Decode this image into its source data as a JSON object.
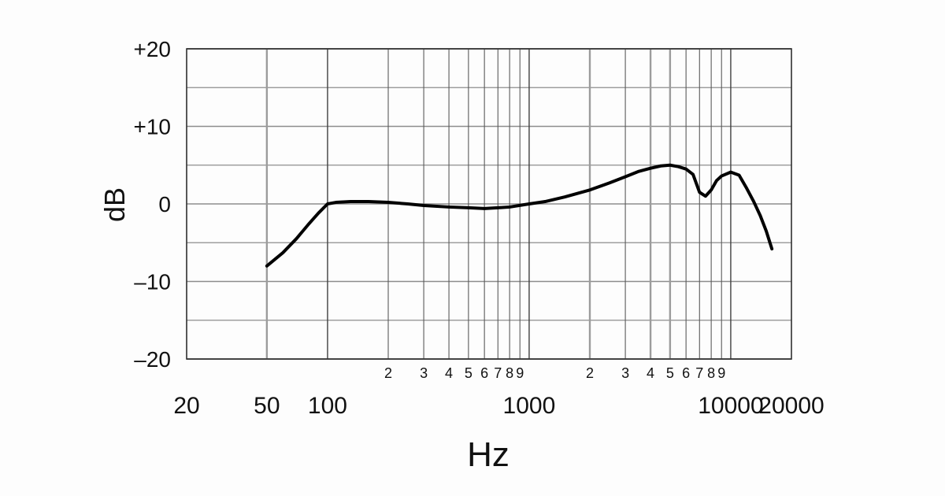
{
  "chart_data": {
    "type": "line",
    "title": "",
    "xlabel": "Hz",
    "ylabel": "dB",
    "x_scale": "log",
    "xlim": [
      20,
      20000
    ],
    "ylim": [
      -20,
      20
    ],
    "grid": true,
    "x_major_ticks": [
      {
        "value": 20,
        "label": "20"
      },
      {
        "value": 50,
        "label": "50"
      },
      {
        "value": 100,
        "label": "100"
      },
      {
        "value": 1000,
        "label": "1000"
      },
      {
        "value": 10000,
        "label": "10000"
      },
      {
        "value": 20000,
        "label": "20000"
      }
    ],
    "x_minor_ticks": [
      {
        "value": 200,
        "label": "2"
      },
      {
        "value": 300,
        "label": "3"
      },
      {
        "value": 400,
        "label": "4"
      },
      {
        "value": 500,
        "label": "5"
      },
      {
        "value": 600,
        "label": "6"
      },
      {
        "value": 700,
        "label": "7"
      },
      {
        "value": 800,
        "label": "8"
      },
      {
        "value": 900,
        "label": "9"
      },
      {
        "value": 2000,
        "label": "2"
      },
      {
        "value": 3000,
        "label": "3"
      },
      {
        "value": 4000,
        "label": "4"
      },
      {
        "value": 5000,
        "label": "5"
      },
      {
        "value": 6000,
        "label": "6"
      },
      {
        "value": 7000,
        "label": "7"
      },
      {
        "value": 8000,
        "label": "8"
      },
      {
        "value": 9000,
        "label": "9"
      }
    ],
    "y_ticks": [
      {
        "value": 20,
        "label": "+20"
      },
      {
        "value": 10,
        "label": "+10"
      },
      {
        "value": 0,
        "label": "0"
      },
      {
        "value": -10,
        "label": "–10"
      },
      {
        "value": -20,
        "label": "–20"
      }
    ],
    "series": [
      {
        "color": "#000000",
        "x": [
          50,
          60,
          70,
          80,
          90,
          100,
          110,
          130,
          160,
          200,
          250,
          300,
          400,
          500,
          600,
          700,
          800,
          1000,
          1200,
          1500,
          2000,
          2500,
          3000,
          3500,
          4000,
          4500,
          5000,
          5500,
          6000,
          6500,
          7000,
          7500,
          8000,
          8500,
          9000,
          10000,
          11000,
          12000,
          13000,
          14000,
          15000,
          16000
        ],
        "y": [
          -8,
          -6.3,
          -4.5,
          -2.7,
          -1.2,
          0,
          0.2,
          0.3,
          0.3,
          0.2,
          0,
          -0.2,
          -0.4,
          -0.5,
          -0.6,
          -0.5,
          -0.4,
          0,
          0.3,
          0.9,
          1.8,
          2.7,
          3.5,
          4.2,
          4.6,
          4.9,
          5,
          4.8,
          4.5,
          3.8,
          1.5,
          1,
          1.8,
          3,
          3.6,
          4.1,
          3.7,
          2,
          0.3,
          -1.5,
          -3.5,
          -5.8
        ]
      }
    ]
  }
}
